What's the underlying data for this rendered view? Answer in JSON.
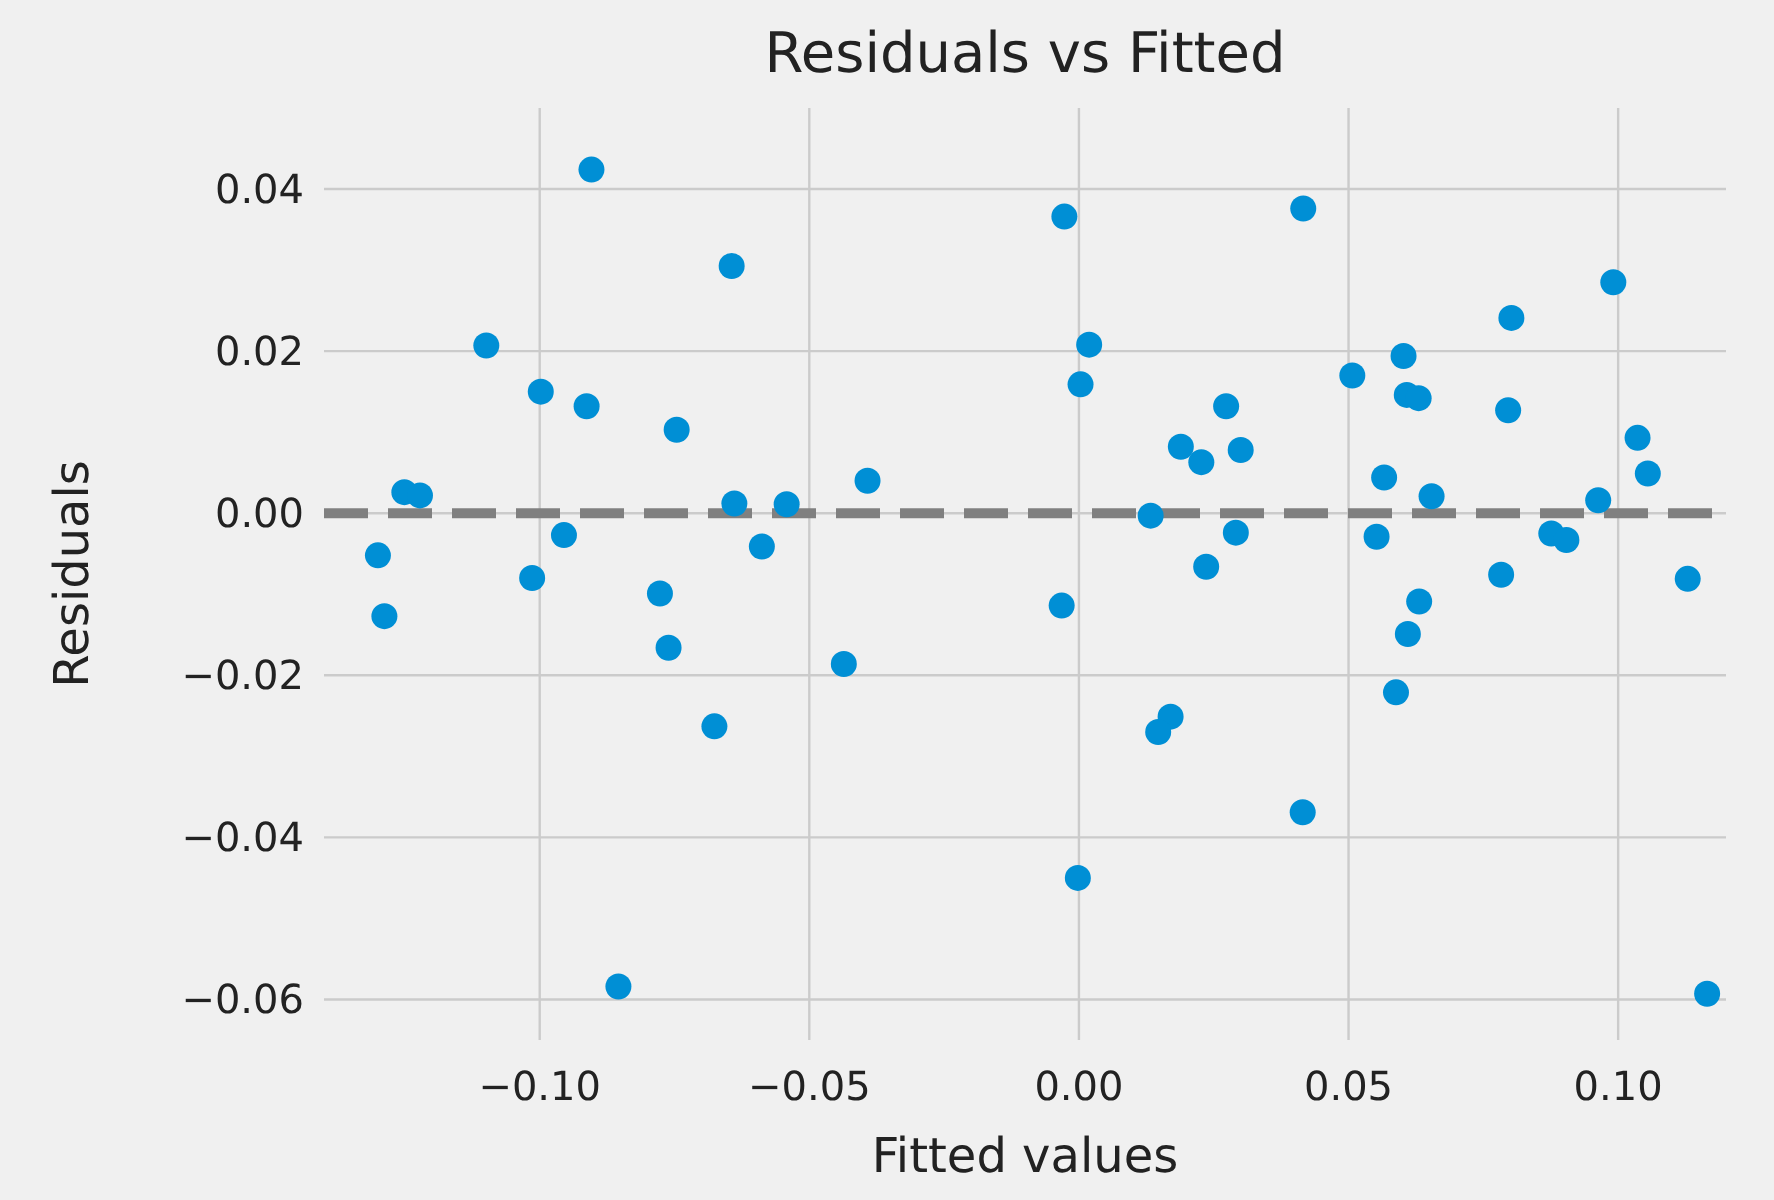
{
  "chart_data": {
    "type": "scatter",
    "title": "Residuals vs Fitted",
    "xlabel": "Fitted values",
    "ylabel": "Residuals",
    "series": [
      {
        "color": "#008fd5",
        "x": [
          -0.0904,
          -0.0644,
          -0.1099,
          -0.0998,
          -0.0913,
          -0.0746,
          -0.1251,
          -0.1222,
          -0.0639,
          -0.0542,
          -0.0392,
          -0.0955,
          -0.13,
          -0.0588,
          -0.1014,
          -0.0777,
          -0.1288,
          -0.0761,
          -0.0436,
          -0.0676,
          -0.0854,
          -0.0027,
          0.0416,
          0.0991,
          0.0802,
          0.0019,
          0.0602,
          0.0003,
          0.0507,
          0.0608,
          0.063,
          0.0796,
          0.0273,
          0.0189,
          0.0227,
          0.03,
          0.1036,
          0.1055,
          0.0566,
          0.0654,
          0.0963,
          0.0133,
          0.0291,
          0.0552,
          0.0876,
          0.0904,
          0.0236,
          0.0783,
          0.1129,
          -0.0032,
          0.0631,
          0.061,
          0.0588,
          0.017,
          0.0147,
          0.0415,
          -0.0002,
          0.1165
        ],
        "values": [
          0.0424,
          0.0305,
          0.0207,
          0.015,
          0.0132,
          0.0103,
          0.0026,
          0.0022,
          0.0012,
          0.0011,
          0.004,
          -0.0027,
          -0.0052,
          -0.0041,
          -0.008,
          -0.0099,
          -0.0127,
          -0.0166,
          -0.0186,
          -0.0263,
          -0.0584,
          0.0366,
          0.0376,
          0.0285,
          0.0241,
          0.0208,
          0.0194,
          0.0159,
          0.017,
          0.0146,
          0.0142,
          0.0127,
          0.0132,
          0.0082,
          0.0063,
          0.0078,
          0.0093,
          0.0049,
          0.0044,
          0.0021,
          0.0016,
          -0.0003,
          -0.0024,
          -0.0029,
          -0.0025,
          -0.0033,
          -0.0066,
          -0.0076,
          -0.0081,
          -0.0114,
          -0.0109,
          -0.0149,
          -0.0221,
          -0.0251,
          -0.027,
          -0.0369,
          -0.045,
          -0.0593
        ]
      }
    ],
    "xlim": [
      -0.14,
      0.12
    ],
    "xticks": [
      {
        "value": -0.1,
        "label": "−0.10"
      },
      {
        "value": -0.05,
        "label": "−0.05"
      },
      {
        "value": 0,
        "label": "0.00"
      },
      {
        "value": 0.05,
        "label": "0.05"
      },
      {
        "value": 0.1,
        "label": "0.10"
      }
    ],
    "ylim": [
      -0.065,
      0.05
    ],
    "yticks": [
      {
        "value": -0.06,
        "label": "−0.06"
      },
      {
        "value": -0.04,
        "label": "−0.04"
      },
      {
        "value": -0.02,
        "label": "−0.02"
      },
      {
        "value": 0,
        "label": "0.00"
      },
      {
        "value": 0.02,
        "label": "0.02"
      },
      {
        "value": 0.04,
        "label": "0.04"
      }
    ],
    "grid": true,
    "marker": "circle",
    "ref_lines": [
      {
        "axis": "y",
        "value": 0,
        "color": "#808080",
        "line_style": "dashed"
      }
    ]
  }
}
